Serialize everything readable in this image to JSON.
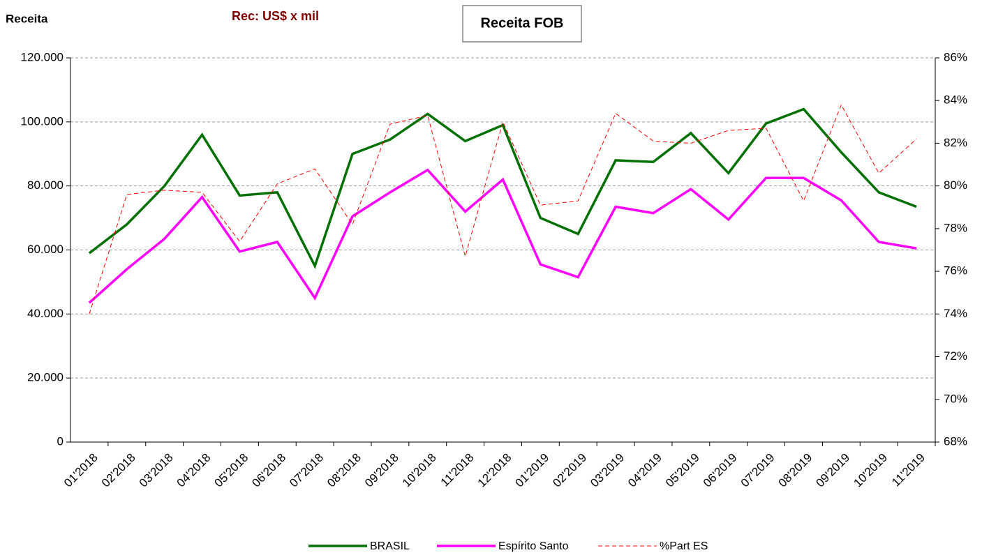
{
  "chart_data": {
    "type": "line",
    "title": "Receita FOB",
    "y_label": "Receita",
    "subtitle": "Rec: US$ x mil",
    "categories": [
      "01'2018",
      "02'2018",
      "03'2018",
      "04'2018",
      "05'2018",
      "06'2018",
      "07'2018",
      "08'2018",
      "09'2018",
      "10'2018",
      "11'2018",
      "12'2018",
      "01'2019",
      "02'2019",
      "03'2019",
      "04'2019",
      "05'2019",
      "06'2019",
      "07'2019",
      "08'2019",
      "09'2019",
      "10'2019",
      "11'2019"
    ],
    "series": [
      {
        "name": "BRASIL",
        "color": "#007000",
        "dash": false,
        "values": [
          59000,
          68000,
          80000,
          96000,
          77000,
          78000,
          55000,
          90000,
          94500,
          102500,
          94000,
          99000,
          70000,
          65000,
          88000,
          87500,
          96500,
          84000,
          99500,
          104000,
          90500,
          78000,
          73500
        ]
      },
      {
        "name": "Espírito Santo",
        "color": "#ff00ff",
        "dash": false,
        "values": [
          43500,
          54000,
          63500,
          76500,
          59500,
          62500,
          45000,
          70500,
          78000,
          85000,
          72000,
          82000,
          55500,
          51500,
          73500,
          71500,
          79000,
          69500,
          82500,
          82500,
          75500,
          62500,
          60500
        ]
      },
      {
        "name": "%Part ES",
        "color": "#ff0000",
        "dash": true,
        "axis": "y2",
        "values": [
          74.0,
          79.6,
          79.8,
          79.7,
          77.4,
          80.1,
          80.8,
          78.2,
          82.9,
          83.3,
          76.7,
          83.0,
          79.1,
          79.3,
          83.4,
          82.1,
          82.0,
          82.6,
          82.7,
          79.3,
          83.8,
          80.6,
          82.2
        ]
      }
    ],
    "ylim": [
      0,
      120000
    ],
    "yticks": [
      0,
      {
        "value": 20000,
        "label": "20.000"
      },
      {
        "value": 40000,
        "label": "40.000"
      },
      {
        "value": 60000,
        "label": "60.000"
      },
      {
        "value": 80000,
        "label": "80.000"
      },
      {
        "value": 100000,
        "label": "100.000"
      },
      {
        "value": 120000,
        "label": "120.000"
      }
    ],
    "y2lim": [
      68,
      86
    ],
    "y2ticks": [
      {
        "value": 68,
        "label": "68%"
      },
      {
        "value": 70,
        "label": "70%"
      },
      {
        "value": 72,
        "label": "72%"
      },
      {
        "value": 74,
        "label": "74%"
      },
      {
        "value": 76,
        "label": "76%"
      },
      {
        "value": 78,
        "label": "78%"
      },
      {
        "value": 80,
        "label": "80%"
      },
      {
        "value": 82,
        "label": "82%"
      },
      {
        "value": 84,
        "label": "84%"
      },
      {
        "value": 86,
        "label": "86%"
      }
    ],
    "grid": true,
    "legend": "bottom"
  }
}
